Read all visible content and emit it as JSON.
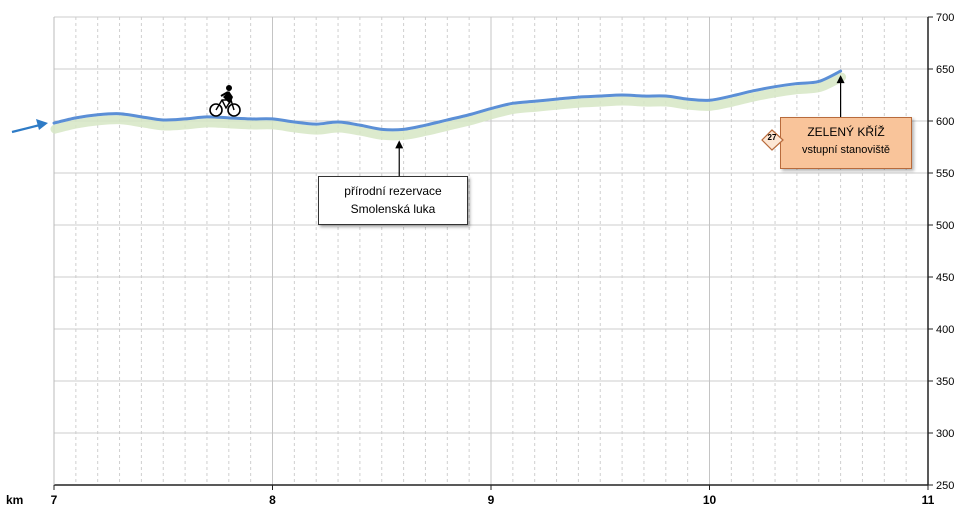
{
  "chart_data": {
    "type": "line",
    "x_unit_label": "km",
    "x_ticks": [
      7,
      8,
      9,
      10,
      11
    ],
    "y_ticks": [
      250,
      300,
      350,
      400,
      450,
      500,
      550,
      600,
      650,
      700
    ],
    "xlim": [
      7,
      11
    ],
    "ylim": [
      250,
      700
    ],
    "grid": true,
    "colors": {
      "line": "#5b8fd6",
      "shadow": "#d6e6c4",
      "arrow": "#2e7bc6",
      "box_fill": "#f9c49a"
    },
    "series": [
      {
        "points": [
          [
            7.0,
            598
          ],
          [
            7.1,
            603
          ],
          [
            7.2,
            606
          ],
          [
            7.3,
            607
          ],
          [
            7.4,
            604
          ],
          [
            7.5,
            601
          ],
          [
            7.6,
            602
          ],
          [
            7.7,
            604
          ],
          [
            7.8,
            603
          ],
          [
            7.9,
            602
          ],
          [
            8.0,
            602
          ],
          [
            8.1,
            599
          ],
          [
            8.2,
            597
          ],
          [
            8.3,
            599
          ],
          [
            8.4,
            596
          ],
          [
            8.5,
            592
          ],
          [
            8.6,
            592
          ],
          [
            8.7,
            596
          ],
          [
            8.8,
            601
          ],
          [
            8.9,
            606
          ],
          [
            9.0,
            612
          ],
          [
            9.1,
            617
          ],
          [
            9.2,
            619
          ],
          [
            9.3,
            621
          ],
          [
            9.4,
            623
          ],
          [
            9.5,
            624
          ],
          [
            9.6,
            625
          ],
          [
            9.7,
            624
          ],
          [
            9.8,
            624
          ],
          [
            9.9,
            621
          ],
          [
            10.0,
            620
          ],
          [
            10.1,
            624
          ],
          [
            10.2,
            629
          ],
          [
            10.3,
            633
          ],
          [
            10.4,
            636
          ],
          [
            10.5,
            638
          ],
          [
            10.6,
            648
          ]
        ]
      }
    ],
    "annotations": [
      {
        "id": "reserve",
        "lines": [
          "přírodní rezervace",
          "Smolenská luka"
        ],
        "x": 8.58,
        "y": 591
      },
      {
        "id": "cross",
        "lines": [
          "ZELENÝ KŘÍŽ",
          "vstupní stanoviště"
        ],
        "x": 10.6,
        "y": 648,
        "badge": "27"
      }
    ],
    "cyclist": {
      "x": 7.78,
      "y": 610
    }
  }
}
